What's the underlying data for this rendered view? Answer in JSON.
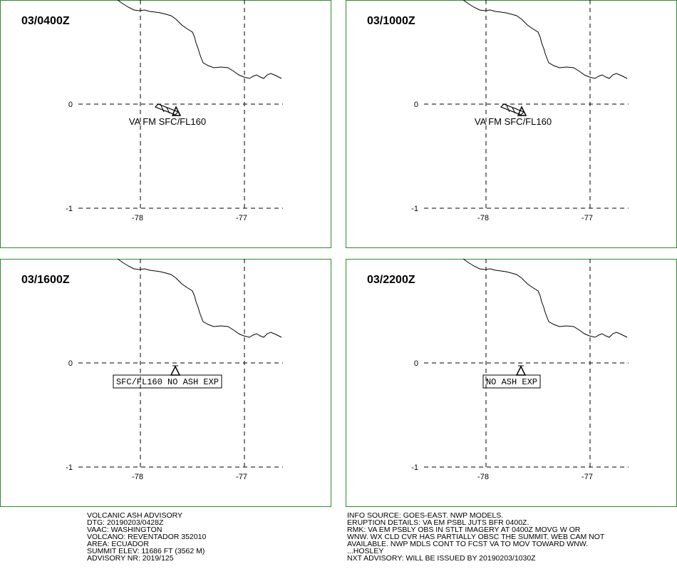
{
  "panels": [
    {
      "time": "03/0400Z",
      "lat_labels": [
        "0",
        "-1"
      ],
      "lon_labels": [
        "-78",
        "-77"
      ],
      "ash_label": "VA FM SFC/FL160"
    },
    {
      "time": "03/1000Z",
      "lat_labels": [
        "0",
        "-1"
      ],
      "lon_labels": [
        "-78",
        "-77"
      ],
      "ash_label": "VA FM SFC/FL160"
    },
    {
      "time": "03/1600Z",
      "lat_labels": [
        "0",
        "-1"
      ],
      "lon_labels": [
        "-78",
        "-77"
      ],
      "box_label": "SFC/FL160 NO ASH EXP"
    },
    {
      "time": "03/2200Z",
      "lat_labels": [
        "0",
        "-1"
      ],
      "lon_labels": [
        "-78",
        "-77"
      ],
      "box_label": "NO ASH EXP"
    }
  ],
  "advisory_left": [
    "VOLCANIC ASH ADVISORY",
    "DTG: 20190203/0428Z",
    "VAAC: WASHINGTON",
    "VOLCANO: REVENTADOR 352010",
    "AREA: ECUADOR",
    "SUMMIT ELEV: 11686 FT (3562 M)",
    "ADVISORY NR: 2019/125"
  ],
  "advisory_right": [
    "INFO SOURCE: GOES-EAST. NWP MODELS.",
    "ERUPTION DETAILS: VA EM PSBL JUTS BFR 0400Z.",
    "RMK: VA EM PSBLY OBS IN STLT IMAGERY AT 0400Z MOVG W OR",
    "WNW. WX CLD CVR HAS PARTIALLY OBSC THE SUMMIT. WEB CAM NOT",
    "AVAILABLE. NWP MDLS CONT TO FCST VA TO MOV TOWARD WNW.",
    "...HOSLEY",
    "NXT ADVISORY: WILL BE ISSUED BY 20190203/1030Z"
  ]
}
